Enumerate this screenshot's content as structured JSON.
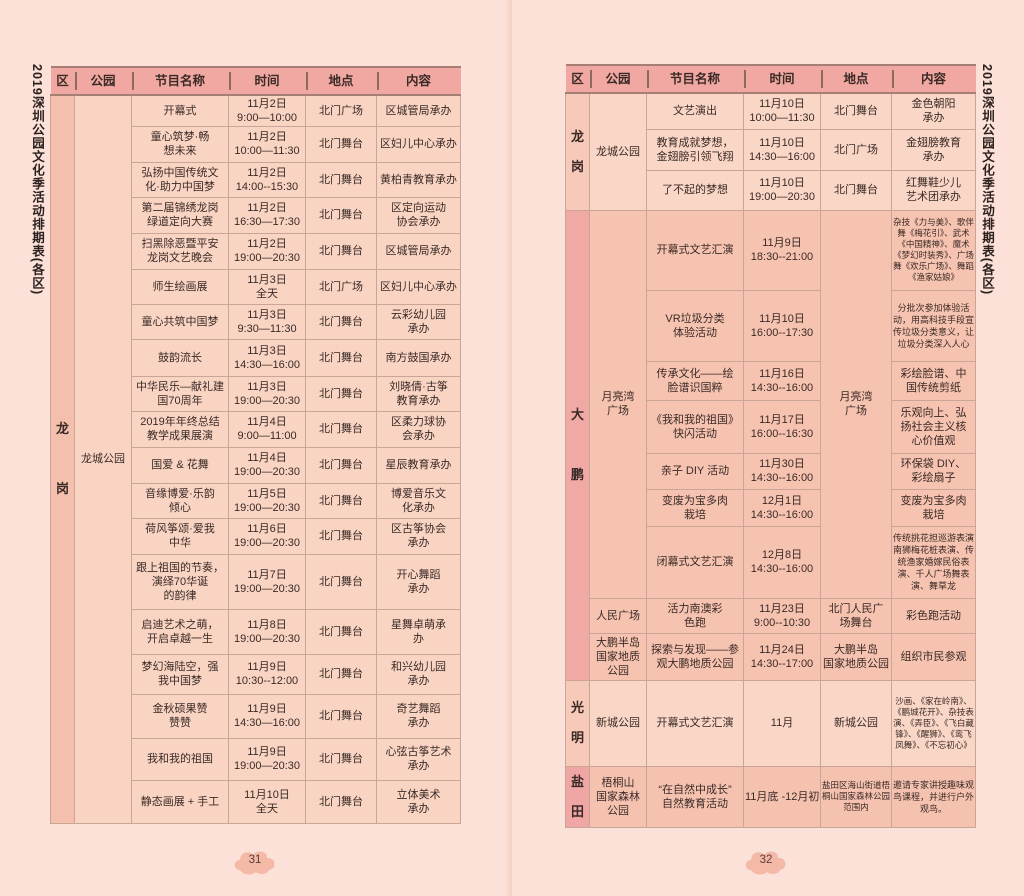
{
  "side_title": "2019深圳公园文化季活动排期表(各区)",
  "headers": [
    "区",
    "公园",
    "节目名称",
    "时间",
    "地点",
    "内容"
  ],
  "pages": [
    {
      "page_number": "31",
      "sections": [
        {
          "district": "龙\n\n岗",
          "colors": {
            "district": "#f5bfae",
            "body": "#f9d4c3"
          },
          "parks": [
            {
              "park": "龙城公园",
              "rows": [
                {
                  "name": "开幕式",
                  "time": "11月2日\n9:00—10:00",
                  "place": "北门广场",
                  "content": "区城管局承办"
                },
                {
                  "name": "童心筑梦·畅\n想未来",
                  "time": "11月2日\n10:00—11:30",
                  "place": "北门舞台",
                  "content": "区妇儿中心承办"
                },
                {
                  "name": "弘扬中国传统文\n化·助力中国梦",
                  "time": "11月2日\n14:00--15:30",
                  "place": "北门舞台",
                  "content": "黄柏青教育承办"
                },
                {
                  "name": "第二届锦绣龙岗\n绿道定向大赛",
                  "time": "11月2日\n16:30—17:30",
                  "place": "北门舞台",
                  "content": "区定向运动\n协会承办"
                },
                {
                  "name": "扫黑除恶暨平安\n龙岗文艺晚会",
                  "time": "11月2日\n19:00—20:30",
                  "place": "北门舞台",
                  "content": "区城管局承办"
                },
                {
                  "name": "师生绘画展",
                  "time": "11月3日\n全天",
                  "place": "北门广场",
                  "content": "区妇儿中心承办"
                },
                {
                  "name": "童心共筑中国梦",
                  "time": "11月3日\n9:30—11:30",
                  "place": "北门舞台",
                  "content": "云彩幼儿园\n承办"
                },
                {
                  "name": "鼓韵流长",
                  "time": "11月3日\n14:30—16:00",
                  "place": "北门舞台",
                  "content": "南方鼓国承办"
                },
                {
                  "name": "中华民乐—献礼建\n国70周年",
                  "time": "11月3日\n19:00—20:30",
                  "place": "北门舞台",
                  "content": "刘晓倩·古筝\n教育承办"
                },
                {
                  "name": "2019年年终总结\n教学成果展演",
                  "time": "11月4日\n9:00—11:00",
                  "place": "北门舞台",
                  "content": "区柔力球协\n会承办"
                },
                {
                  "name": "国爱 & 花舞",
                  "time": "11月4日\n19:00—20:30",
                  "place": "北门舞台",
                  "content": "星辰教育承办"
                },
                {
                  "name": "音缘博爱·乐韵\n倾心",
                  "time": "11月5日\n19:00—20:30",
                  "place": "北门舞台",
                  "content": "博爱音乐文\n化承办"
                },
                {
                  "name": "荷风筝颂·爱我\n中华",
                  "time": "11月6日\n19:00—20:30",
                  "place": "北门舞台",
                  "content": "区古筝协会\n承办"
                },
                {
                  "name": "跟上祖国的节奏，\n演绎70华诞\n的韵律",
                  "time": "11月7日\n19:00—20:30",
                  "place": "北门舞台",
                  "content": "开心舞蹈\n承办"
                },
                {
                  "name": "启迪艺术之萌，\n开启卓越一生",
                  "time": "11月8日\n19:00—20:30",
                  "place": "北门舞台",
                  "content": "星舞卓萌承\n办"
                },
                {
                  "name": "梦幻海陆空，强\n我中国梦",
                  "time": "11月9日\n10:30--12:00",
                  "place": "北门舞台",
                  "content": "和兴幼儿园\n承办"
                },
                {
                  "name": "金秋硕果赞\n赞赞",
                  "time": "11月9日\n14:30—16:00",
                  "place": "北门舞台",
                  "content": "奇艺舞蹈\n承办"
                },
                {
                  "name": "我和我的祖国",
                  "time": "11月9日\n19:00—20:30",
                  "place": "北门舞台",
                  "content": "心弦古筝艺术\n承办"
                },
                {
                  "name": "静态画展 + 手工",
                  "time": "11月10日\n全天",
                  "place": "北门舞台",
                  "content": "立体美术\n承办"
                }
              ]
            }
          ]
        }
      ]
    },
    {
      "page_number": "32",
      "sections": [
        {
          "district": "龙\n岗",
          "colors": {
            "district": "#f7c9b8",
            "body": "#f9d6c6"
          },
          "parks": [
            {
              "park": "龙城公园",
              "rows": [
                {
                  "name": "文艺演出",
                  "time": "11月10日\n10:00—11:30",
                  "place": "北门舞台",
                  "content": "金色朝阳\n承办"
                },
                {
                  "name": "教育成就梦想，\n金翅膀引领飞翔",
                  "time": "11月10日\n14:30—16:00",
                  "place": "北门广场",
                  "content": "金翅膀教育\n承办"
                },
                {
                  "name": "了不起的梦想",
                  "time": "11月10日\n19:00—20:30",
                  "place": "北门舞台",
                  "content": "红舞鞋少儿\n艺术团承办"
                }
              ]
            }
          ]
        },
        {
          "district": "大\n\n鹏",
          "colors": {
            "district": "#f0a9a5",
            "body": "#f6c3b0"
          },
          "parks": [
            {
              "park": "月亮湾\n广场",
              "place": "月亮湾\n广场",
              "rows": [
                {
                  "name": "开幕式文艺汇演",
                  "time": "11月9日\n18:30--21:00",
                  "content": "杂技《力与美》、歌伴舞《梅花引》、武术《中国精神》、魔术《梦幻时装秀》、广场舞《欢乐广场》、舞蹈《渔家姑娘》"
                },
                {
                  "name": "VR垃圾分类\n体验活动",
                  "time": "11月10日\n16:00--17:30",
                  "content": "分批次参加体验活动，用高科技手段宣传垃圾分类意义，让垃圾分类深入人心"
                },
                {
                  "name": "传承文化——绘\n脸谱识国粹",
                  "time": "11月16日\n14:30--16:00",
                  "content": "彩绘脸谱、中\n国传统剪纸"
                },
                {
                  "name": "《我和我的祖国》\n快闪活动",
                  "time": "11月17日\n16:00--16:30",
                  "content": "乐观向上、弘\n扬社会主义核\n心价值观"
                },
                {
                  "name": "亲子 DIY 活动",
                  "time": "11月30日\n14:30--16:00",
                  "content": "环保袋 DIY、\n彩绘扇子"
                },
                {
                  "name": "变废为宝多肉\n栽培",
                  "time": "12月1日\n14:30--16:00",
                  "content": "变废为宝多肉\n栽培"
                },
                {
                  "name": "闭幕式文艺汇演",
                  "time": "12月8日\n14:30--16:00",
                  "content": "传统挑花担巡游表演 南狮梅花桩表演、传统渔家婚嫁民俗表演、千人广场舞表演、舞草龙"
                }
              ]
            },
            {
              "park": "人民广场",
              "rows": [
                {
                  "name": "活力南澳彩\n色跑",
                  "time": "11月23日\n9:00--10:30",
                  "place": "北门人民广\n场舞台",
                  "content": "彩色跑活动"
                }
              ]
            },
            {
              "park": "大鹏半岛\n国家地质\n公园",
              "rows": [
                {
                  "name": "探索与发现——参\n观大鹏地质公园",
                  "time": "11月24日\n14:30--17:00",
                  "place": "大鹏半岛\n国家地质公园",
                  "content": "组织市民参观"
                }
              ]
            }
          ]
        },
        {
          "district": "光\n明",
          "colors": {
            "district": "#f7c9b8",
            "body": "#f9d6c6"
          },
          "parks": [
            {
              "park": "新城公园",
              "rows": [
                {
                  "name": "开幕式文艺汇演",
                  "time": "11月",
                  "place": "新城公园",
                  "content": "沙画、《家在岭南》、《鹏城花开》、杂技表演、《弄臣》、《飞白藏锋》、《醒狮》、《鸾飞凤舞》、《不忘初心》"
                }
              ]
            }
          ]
        },
        {
          "district": "盐\n田",
          "colors": {
            "district": "#f0a6a4",
            "body": "#f6c2b0"
          },
          "parks": [
            {
              "park": "梧桐山\n国家森林\n公园",
              "rows": [
                {
                  "name": "“在自然中成长”\n自然教育活动",
                  "time": "11月底 -12月初",
                  "place": "盐田区海山街道梧桐山国家森林公园范围内",
                  "content": "邀请专家讲授趣味观鸟课程，并进行户外观鸟。"
                }
              ]
            }
          ]
        }
      ]
    }
  ]
}
